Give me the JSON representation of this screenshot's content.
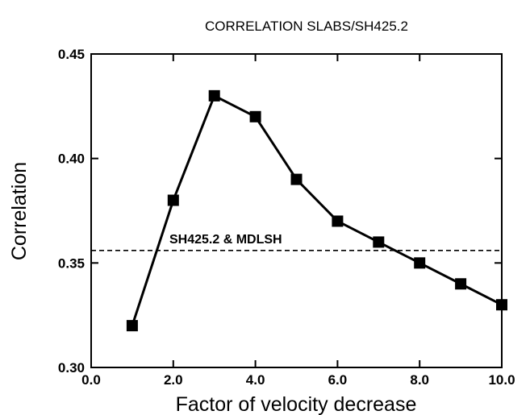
{
  "chart_data": {
    "type": "line",
    "title": "CORRELATION SLABS/SH425.2",
    "xlabel": "Factor of velocity decrease",
    "ylabel": "Correlation",
    "xlim": [
      0.0,
      10.0
    ],
    "ylim": [
      0.3,
      0.45
    ],
    "x_ticks": [
      "0.0",
      "2.0",
      "4.0",
      "6.0",
      "8.0",
      "10.0"
    ],
    "y_ticks": [
      "0.30",
      "0.35",
      "0.40",
      "0.45"
    ],
    "grid": false,
    "series": [
      {
        "marker": "square",
        "color": "#000000",
        "x": [
          1,
          2,
          3,
          4,
          5,
          6,
          7,
          8,
          9,
          10
        ],
        "y": [
          0.32,
          0.38,
          0.43,
          0.42,
          0.39,
          0.37,
          0.36,
          0.35,
          0.34,
          0.33
        ]
      }
    ],
    "reference_line": {
      "label": "SH425.2 & MDLSH",
      "y": 0.356,
      "style": "dashed"
    }
  }
}
